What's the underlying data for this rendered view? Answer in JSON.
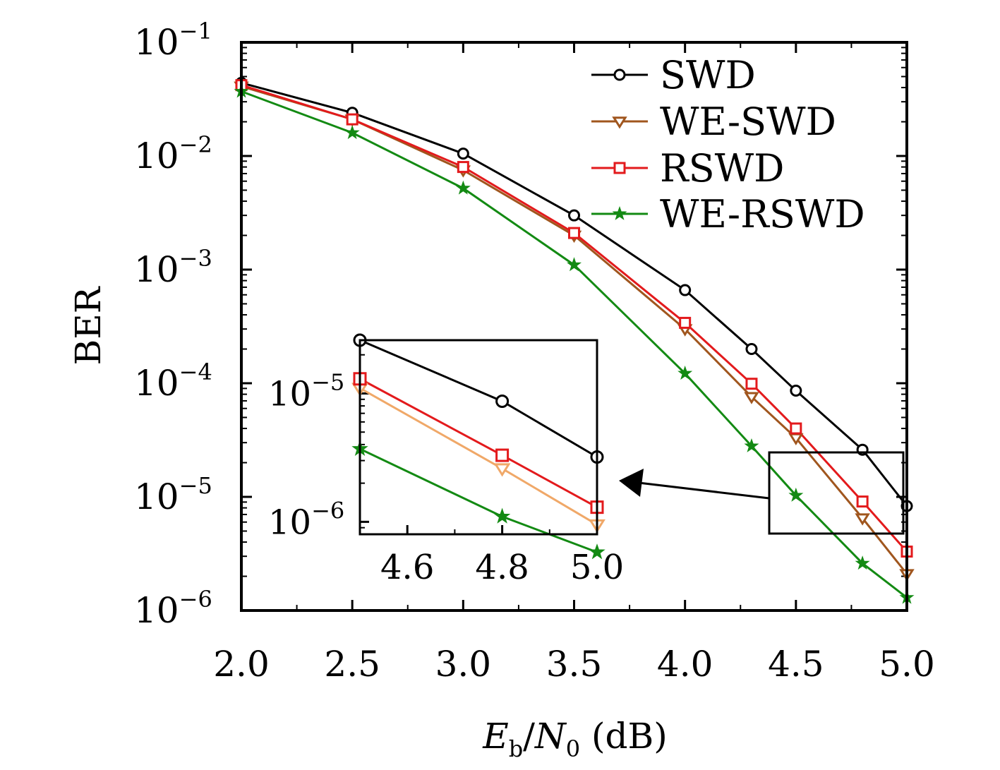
{
  "chart_data": [
    {
      "type": "line",
      "xlabel_parts": {
        "E": "E",
        "sub_b": "b",
        "slash": "/",
        "N": "N",
        "sub_0": "0",
        "unit": " (dB)"
      },
      "ylabel": "BER",
      "xlim": [
        2.0,
        5.0
      ],
      "ylim": [
        1e-06,
        0.1
      ],
      "yscale": "log",
      "x_ticks": [
        "2.0",
        "2.5",
        "3.0",
        "3.5",
        "4.0",
        "4.5",
        "5.0"
      ],
      "y_ticks": [
        {
          "base": "10",
          "exp": "−1",
          "value": 0.1
        },
        {
          "base": "10",
          "exp": "−2",
          "value": 0.01
        },
        {
          "base": "10",
          "exp": "−3",
          "value": 0.001
        },
        {
          "base": "10",
          "exp": "−4",
          "value": 0.0001
        },
        {
          "base": "10",
          "exp": "−5",
          "value": 1e-05
        },
        {
          "base": "10",
          "exp": "−6",
          "value": 1e-06
        }
      ],
      "legend_position": "top-right",
      "x": [
        2.0,
        2.5,
        3.0,
        3.5,
        4.0,
        4.3,
        4.5,
        4.8,
        5.0
      ],
      "series": [
        {
          "name": "SWD",
          "color": "#000000",
          "marker": "circle",
          "values": [
            0.044,
            0.024,
            0.0105,
            0.003,
            0.00066,
            0.0002,
            8.6e-05,
            2.6e-05,
            8.3e-06
          ]
        },
        {
          "name": "WE-SWD",
          "color": "#a0561e",
          "marker": "triangle-down",
          "values": [
            0.041,
            0.021,
            0.0075,
            0.002,
            0.0003,
            7.6e-05,
            3.3e-05,
            6.5e-06,
            2.1e-06
          ]
        },
        {
          "name": "RSWD",
          "color": "#e31a1c",
          "marker": "square",
          "values": [
            0.042,
            0.021,
            0.008,
            0.0021,
            0.00034,
            9.9e-05,
            4e-05,
            9.1e-06,
            3.3e-06
          ]
        },
        {
          "name": "WE-RSWD",
          "color": "#138a13",
          "marker": "star",
          "values": [
            0.037,
            0.016,
            0.0052,
            0.0011,
            0.000122,
            2.8e-05,
            1.03e-05,
            2.6e-06,
            1.3e-06
          ]
        }
      ]
    },
    {
      "type": "line",
      "role": "inset",
      "xlim": [
        4.5,
        5.0
      ],
      "ylim": [
        8e-07,
        2.6e-05
      ],
      "yscale": "log",
      "x_ticks": [
        "4.6",
        "4.8",
        "5.0"
      ],
      "y_ticks": [
        {
          "base": "10",
          "exp": "−5",
          "value": 1e-05
        },
        {
          "base": "10",
          "exp": "−6",
          "value": 1e-06
        }
      ],
      "x": [
        4.5,
        4.8,
        5.0
      ],
      "series": [
        {
          "name": "SWD",
          "color": "#000000",
          "marker": "circle",
          "values": [
            2.6e-05,
            8.7e-06,
            3.2e-06
          ]
        },
        {
          "name": "WE-SWD",
          "color": "#f0a868",
          "marker": "triangle-down",
          "values": [
            1.1e-05,
            2.6e-06,
            9.5e-07
          ]
        },
        {
          "name": "RSWD",
          "color": "#e31a1c",
          "marker": "square",
          "values": [
            1.3e-05,
            3.3e-06,
            1.3e-06
          ]
        },
        {
          "name": "WE-RSWD",
          "color": "#138a13",
          "marker": "star",
          "values": [
            3.7e-06,
            1.1e-06,
            5.8e-07
          ]
        }
      ]
    }
  ]
}
